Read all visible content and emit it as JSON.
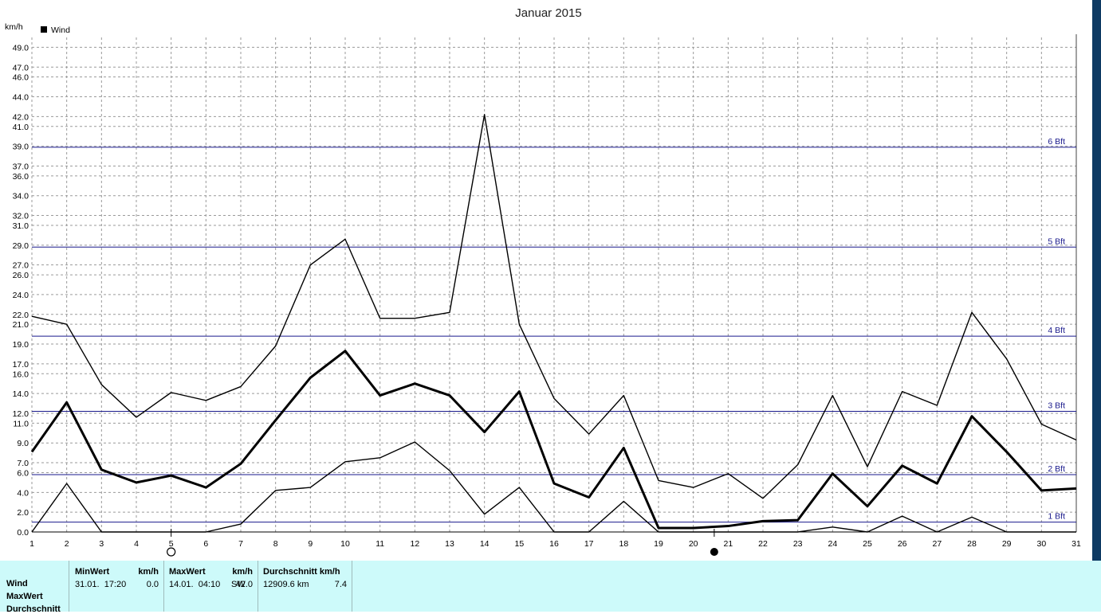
{
  "chart_data": {
    "type": "line",
    "title": "Januar 2015",
    "ylabel": "km/h",
    "legend": [
      "Wind"
    ],
    "legend_placement": "top-left",
    "x": [
      1,
      2,
      3,
      4,
      5,
      6,
      7,
      8,
      9,
      10,
      11,
      12,
      13,
      14,
      15,
      16,
      17,
      18,
      19,
      20,
      21,
      22,
      23,
      24,
      25,
      26,
      27,
      28,
      29,
      30,
      31
    ],
    "ylim": [
      0,
      50
    ],
    "yticks": [
      "0.0",
      "2.0",
      "4.0",
      "6.0",
      "7.0",
      "9.0",
      "11.0",
      "12.0",
      "14.0",
      "16.0",
      "17.0",
      "19.0",
      "21.0",
      "22.0",
      "24.0",
      "26.0",
      "27.0",
      "29.0",
      "31.0",
      "32.0",
      "34.0",
      "36.0",
      "37.0",
      "39.0",
      "41.0",
      "42.0",
      "44.0",
      "46.0",
      "47.0",
      "49.0"
    ],
    "grid": true,
    "series": [
      {
        "name": "Wind",
        "style": "bold",
        "values": [
          8.1,
          13.1,
          6.3,
          5.0,
          5.7,
          4.5,
          6.9,
          11.3,
          15.6,
          18.3,
          13.8,
          15.0,
          13.8,
          10.1,
          14.2,
          4.9,
          3.5,
          8.5,
          0.4,
          0.4,
          0.6,
          1.1,
          1.2,
          5.9,
          2.6,
          6.7,
          4.9,
          11.7,
          8.1,
          4.2,
          4.4
        ]
      },
      {
        "style": "thin",
        "values": [
          21.8,
          21.0,
          14.9,
          11.6,
          14.1,
          13.3,
          14.7,
          18.8,
          27.0,
          29.6,
          21.6,
          21.6,
          22.2,
          42.2,
          21.0,
          13.5,
          9.9,
          13.8,
          5.2,
          4.5,
          5.9,
          3.4,
          6.8,
          13.8,
          6.6,
          14.2,
          12.8,
          22.2,
          17.5,
          10.9,
          9.3
        ]
      },
      {
        "style": "thin",
        "values": [
          0.0,
          4.9,
          0.0,
          0.0,
          0.0,
          0.0,
          0.8,
          4.2,
          4.5,
          7.1,
          7.5,
          9.1,
          6.2,
          1.8,
          4.5,
          0.0,
          0.0,
          3.1,
          0.0,
          0.0,
          0.0,
          0.0,
          0.0,
          0.5,
          0.0,
          1.6,
          0.0,
          1.5,
          0.0,
          0.0,
          0.0
        ]
      }
    ],
    "beaufort_lines": [
      {
        "label": "1 Bft",
        "value": 1.0
      },
      {
        "label": "2 Bft",
        "value": 5.8
      },
      {
        "label": "3 Bft",
        "value": 12.2
      },
      {
        "label": "4 Bft",
        "value": 19.8
      },
      {
        "label": "5 Bft",
        "value": 28.8
      },
      {
        "label": "6 Bft",
        "value": 38.9
      }
    ],
    "moon_phases": [
      {
        "day": 5,
        "phase": "full"
      },
      {
        "day": 20.6,
        "phase": "new"
      }
    ]
  },
  "stats": {
    "row_labels": [
      "Wind",
      "MaxWert",
      "Durchschnitt"
    ],
    "min": {
      "header": "MinWert",
      "unit": "km/h",
      "datetime": "31.01.  17:20",
      "value": "0.0"
    },
    "max": {
      "header": "MaxWert",
      "unit": "km/h",
      "datetime": "14.01.  04:10",
      "dir": "SW",
      "value": "42.0"
    },
    "avg": {
      "header": "Durchschnitt km/h",
      "distance": "12909.6 km",
      "value": "7.4"
    }
  },
  "colors": {
    "series": "#000000",
    "bft": "#1a1a8c",
    "grid": "#9a9a9a",
    "panel": "#cdfafa"
  }
}
